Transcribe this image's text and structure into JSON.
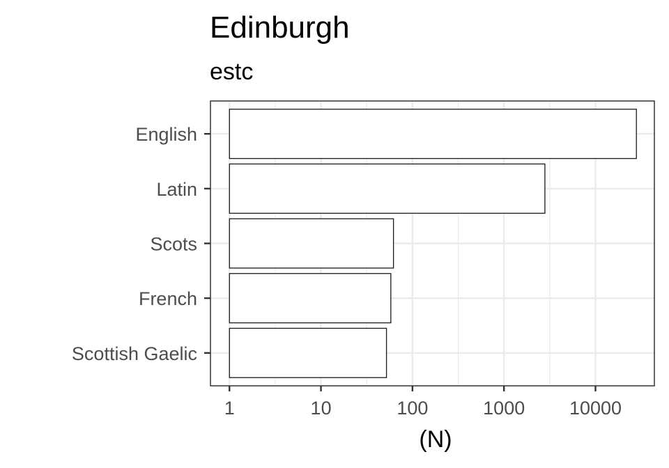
{
  "chart_data": {
    "type": "bar",
    "orientation": "horizontal",
    "title": "Edinburgh",
    "subtitle": "estc",
    "xlabel": "(N)",
    "ylabel": "",
    "x_scale": "log10",
    "xlim": [
      0.62,
      44000
    ],
    "x_ticks": [
      1,
      10,
      100,
      1000,
      10000
    ],
    "x_tick_labels": [
      "1",
      "10",
      "100",
      "1000",
      "10000"
    ],
    "categories": [
      "English",
      "Latin",
      "Scots",
      "French",
      "Scottish Gaelic"
    ],
    "values": [
      28000,
      2800,
      62,
      58,
      52
    ],
    "grid": true,
    "legend": "none",
    "colors": {
      "bar_fill": "#ffffff",
      "bar_stroke": "#1a1a1a",
      "grid": "#ebebeb",
      "panel_border": "#333333"
    }
  }
}
